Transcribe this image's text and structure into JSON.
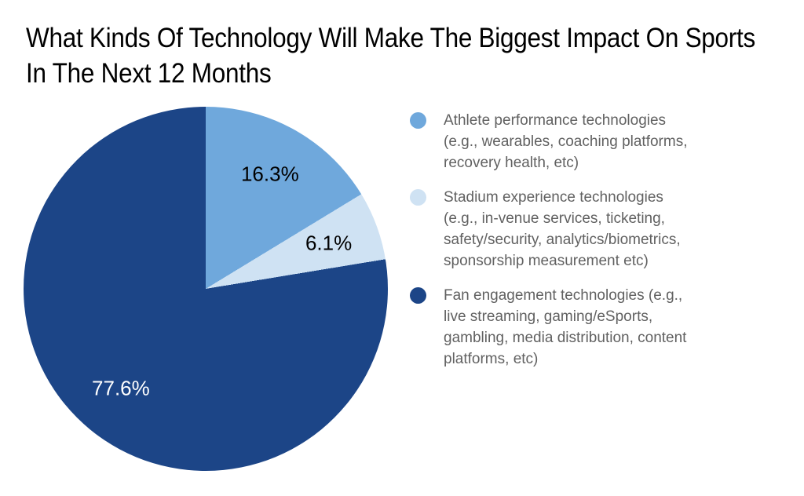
{
  "chart_data": {
    "type": "pie",
    "title": "What Kinds Of Technology Will Make The Biggest Impact On Sports In The Next 12 Months",
    "direction": "clockwise",
    "start_angle_deg": 0,
    "legend_position": "right",
    "colors": {
      "background": "#ffffff",
      "title_text": "#000000",
      "legend_text": "#616161"
    },
    "slices": [
      {
        "label": "Athlete performance technologies (e.g., wearables, coaching platforms, recovery health, etc)",
        "value": 16.3,
        "display": "16.3%",
        "color": "#6fa8dc",
        "label_color": "#000000",
        "legend_lines": [
          "Athlete performance technologies",
          "(e.g., wearables, coaching platforms,",
          "recovery health, etc)"
        ]
      },
      {
        "label": "Stadium experience technologies (e.g., in-venue services, ticketing, safety/security, analytics/biometrics, sponsorship measurement etc)",
        "value": 6.1,
        "display": "6.1%",
        "color": "#cfe2f3",
        "label_color": "#000000",
        "legend_lines": [
          "Stadium experience technologies",
          "(e.g., in-venue services, ticketing,",
          "safety/security, analytics/biometrics,",
          "sponsorship measurement etc)"
        ]
      },
      {
        "label": "Fan engagement technologies (e.g., live streaming, gaming/eSports, gambling, media distribution, content platforms, etc)",
        "value": 77.6,
        "display": "77.6%",
        "color": "#1c4587",
        "label_color": "#ffffff",
        "legend_lines": [
          "Fan engagement technologies (e.g.,",
          "live streaming, gaming/eSports,",
          "gambling, media distribution, content",
          "platforms, etc)"
        ]
      }
    ]
  }
}
